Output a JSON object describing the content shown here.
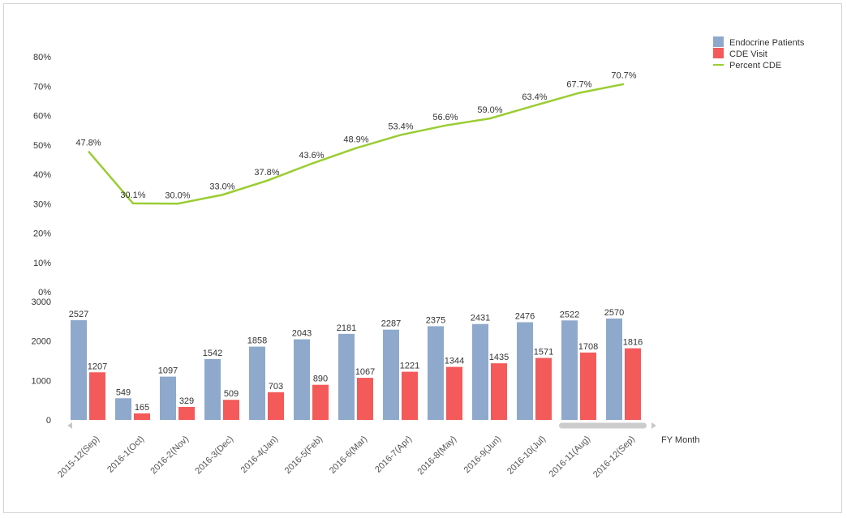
{
  "chart_data": [
    {
      "type": "line",
      "categories": [
        "2015-12(Sep)",
        "2016-1(Oct)",
        "2016-2(Nov)",
        "2016-3(Dec)",
        "2016-4(Jan)",
        "2016-5(Feb)",
        "2016-6(Mar)",
        "2016-7(Apr)",
        "2016-8(May)",
        "2016-9(Jun)",
        "2016-10(Jul)",
        "2016-11(Aug)",
        "2016-12(Sep)"
      ],
      "series": [
        {
          "name": "Percent CDE",
          "color": "#9ACD32",
          "values": [
            47.8,
            30.1,
            30.0,
            33.0,
            37.8,
            43.6,
            48.9,
            53.4,
            56.6,
            59.0,
            63.4,
            67.7,
            70.7
          ],
          "labels": [
            "47.8%",
            "30.1%",
            "30.0%",
            "33.0%",
            "37.8%",
            "43.6%",
            "48.9%",
            "53.4%",
            "56.6%",
            "59.0%",
            "63.4%",
            "67.7%",
            "70.7%"
          ]
        }
      ],
      "ylim": [
        0,
        80
      ],
      "yticks": [
        "0%",
        "10%",
        "20%",
        "30%",
        "40%",
        "50%",
        "60%",
        "70%",
        "80%"
      ]
    },
    {
      "type": "bar",
      "categories": [
        "2015-12(Sep)",
        "2016-1(Oct)",
        "2016-2(Nov)",
        "2016-3(Dec)",
        "2016-4(Jan)",
        "2016-5(Feb)",
        "2016-6(Mar)",
        "2016-7(Apr)",
        "2016-8(May)",
        "2016-9(Jun)",
        "2016-10(Jul)",
        "2016-11(Aug)",
        "2016-12(Sep)"
      ],
      "series": [
        {
          "name": "Endocrine Patients",
          "color": "#8EA9CC",
          "values": [
            2527,
            549,
            1097,
            1542,
            1858,
            2043,
            2181,
            2287,
            2375,
            2431,
            2476,
            2522,
            2570
          ]
        },
        {
          "name": "CDE Visit",
          "color": "#F45A5A",
          "values": [
            1207,
            165,
            329,
            509,
            703,
            890,
            1067,
            1221,
            1344,
            1435,
            1571,
            1708,
            1816
          ]
        }
      ],
      "ylim": [
        0,
        3000
      ],
      "yticks": [
        "0",
        "1000",
        "2000",
        "3000"
      ],
      "xlabel": "FY Month"
    }
  ],
  "legend": {
    "position": "top-right",
    "items": [
      {
        "label": "Endocrine Patients",
        "color": "#8EA9CC",
        "shape": "box"
      },
      {
        "label": "CDE Visit",
        "color": "#F45A5A",
        "shape": "box"
      },
      {
        "label": "Percent CDE",
        "color": "#9ACD32",
        "shape": "line"
      }
    ]
  },
  "scrollbar": {
    "thumb_color": "#CCCCCC",
    "arrow_color": "#C8C8C8"
  }
}
